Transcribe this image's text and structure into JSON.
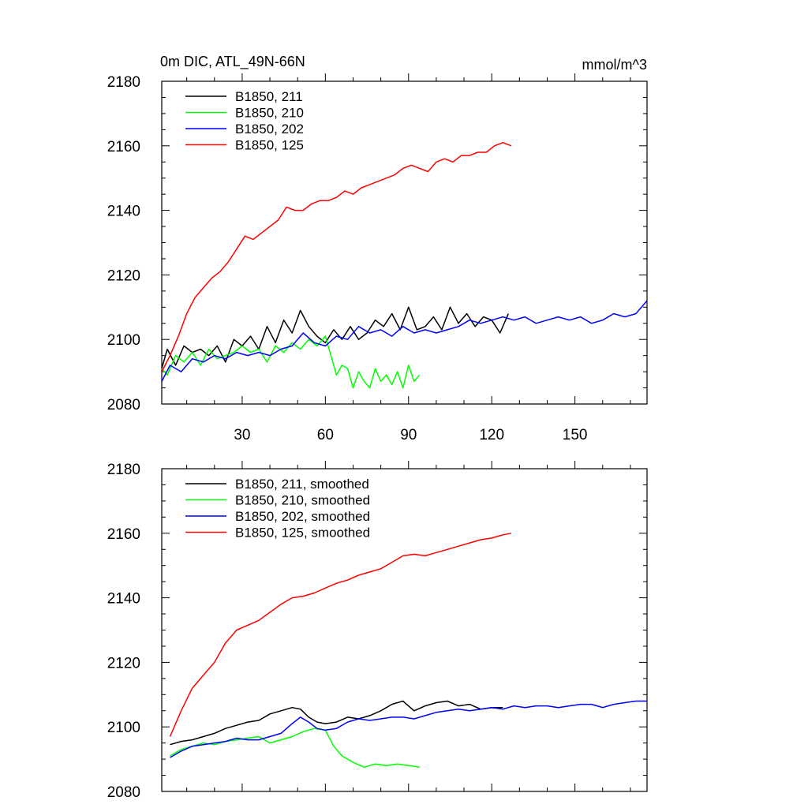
{
  "chart_data": [
    {
      "type": "line",
      "title": "0m DIC, ATL_49N-66N",
      "units": "mmol/m^3",
      "ylim": [
        2080,
        2180
      ],
      "xlim": [
        1,
        176
      ],
      "ytick_labels": [
        2080,
        2100,
        2120,
        2140,
        2160,
        2180
      ],
      "xtick_labels": [
        30,
        60,
        90,
        120,
        150
      ],
      "legend_position": "top-left",
      "series": [
        {
          "name": "B1850, 211",
          "color": "#000000",
          "x": [
            1,
            3,
            6,
            9,
            12,
            15,
            18,
            21,
            24,
            27,
            30,
            33,
            36,
            39,
            42,
            45,
            48,
            51,
            54,
            57,
            60,
            63,
            66,
            69,
            72,
            75,
            78,
            81,
            84,
            87,
            90,
            93,
            96,
            99,
            102,
            105,
            108,
            111,
            114,
            117,
            120,
            123,
            126
          ],
          "values": [
            2091,
            2097,
            2092,
            2098,
            2096,
            2097,
            2095,
            2098,
            2093,
            2100,
            2098,
            2101,
            2097,
            2104,
            2099,
            2106,
            2102,
            2109,
            2104,
            2101,
            2099,
            2103,
            2100,
            2104,
            2100,
            2102,
            2106,
            2104,
            2108,
            2103,
            2110,
            2103,
            2104,
            2107,
            2103,
            2110,
            2105,
            2108,
            2104,
            2107,
            2106,
            2102,
            2108
          ]
        },
        {
          "name": "B1850, 210",
          "color": "#00ff00",
          "x": [
            1,
            3,
            6,
            9,
            12,
            15,
            18,
            21,
            24,
            27,
            30,
            33,
            36,
            39,
            42,
            45,
            48,
            51,
            54,
            57,
            60,
            62,
            64,
            66,
            68,
            70,
            72,
            74,
            76,
            78,
            80,
            82,
            84,
            86,
            88,
            90,
            92,
            94
          ],
          "values": [
            2091,
            2089,
            2095,
            2093,
            2096,
            2092,
            2097,
            2094,
            2095,
            2096,
            2098,
            2096,
            2097,
            2093,
            2098,
            2096,
            2099,
            2097,
            2100,
            2098,
            2101,
            2095,
            2089,
            2092,
            2091,
            2085,
            2090,
            2087,
            2085,
            2091,
            2087,
            2089,
            2086,
            2090,
            2085,
            2092,
            2087,
            2089
          ]
        },
        {
          "name": "B1850, 202",
          "color": "#0000ff",
          "x": [
            1,
            4,
            8,
            12,
            16,
            20,
            24,
            28,
            32,
            36,
            40,
            44,
            48,
            52,
            56,
            60,
            64,
            68,
            72,
            76,
            80,
            84,
            88,
            92,
            96,
            100,
            104,
            108,
            112,
            116,
            120,
            124,
            128,
            132,
            136,
            140,
            144,
            148,
            152,
            156,
            160,
            164,
            168,
            172,
            176
          ],
          "values": [
            2087,
            2092,
            2090,
            2094,
            2093,
            2095,
            2094,
            2096,
            2095,
            2096,
            2095,
            2097,
            2098,
            2102,
            2099,
            2098,
            2101,
            2100,
            2104,
            2102,
            2103,
            2101,
            2104,
            2102,
            2103,
            2102,
            2103,
            2104,
            2106,
            2105,
            2106,
            2107,
            2106,
            2107,
            2105,
            2106,
            2107,
            2106,
            2107,
            2105,
            2106,
            2108,
            2107,
            2108,
            2112
          ]
        },
        {
          "name": "B1850, 125",
          "color": "#ff0000",
          "x": [
            1,
            4,
            7,
            10,
            13,
            16,
            19,
            22,
            25,
            28,
            31,
            34,
            37,
            40,
            43,
            46,
            49,
            52,
            55,
            58,
            61,
            64,
            67,
            70,
            73,
            76,
            79,
            82,
            85,
            88,
            91,
            94,
            97,
            100,
            103,
            106,
            109,
            112,
            115,
            118,
            121,
            124,
            127
          ],
          "values": [
            2090,
            2095,
            2101,
            2108,
            2113,
            2116,
            2119,
            2121,
            2124,
            2128,
            2132,
            2131,
            2133,
            2135,
            2137,
            2141,
            2140,
            2140,
            2142,
            2143,
            2143,
            2144,
            2146,
            2145,
            2147,
            2148,
            2149,
            2150,
            2151,
            2153,
            2154,
            2153,
            2152,
            2155,
            2156,
            2155,
            2157,
            2157,
            2158,
            2158,
            2160,
            2161,
            2160
          ]
        }
      ]
    },
    {
      "type": "line",
      "ylim": [
        2080,
        2180
      ],
      "xlim": [
        1,
        176
      ],
      "ytick_labels": [
        2080,
        2100,
        2120,
        2140,
        2160,
        2180
      ],
      "legend_position": "top-left",
      "series": [
        {
          "name": "B1850, 211, smoothed",
          "color": "#000000",
          "x": [
            4,
            8,
            12,
            16,
            20,
            24,
            28,
            32,
            36,
            40,
            44,
            48,
            51,
            54,
            57,
            60,
            64,
            68,
            72,
            76,
            80,
            84,
            88,
            92,
            96,
            100,
            104,
            108,
            112,
            116,
            120,
            124
          ],
          "values": [
            2094.5,
            2095.5,
            2096,
            2097,
            2098,
            2099.5,
            2100.5,
            2101.5,
            2102,
            2104,
            2105,
            2106,
            2105.5,
            2103,
            2101.5,
            2101,
            2101.5,
            2103,
            2102.5,
            2103.5,
            2105,
            2107,
            2108,
            2105,
            2106.5,
            2107.5,
            2108,
            2106.5,
            2107,
            2105.5,
            2106,
            2106
          ]
        },
        {
          "name": "B1850, 210, smoothed",
          "color": "#00ff00",
          "x": [
            4,
            8,
            12,
            16,
            20,
            24,
            28,
            32,
            36,
            40,
            44,
            48,
            52,
            56,
            60,
            63,
            66,
            70,
            74,
            78,
            82,
            86,
            90,
            94
          ],
          "values": [
            2091,
            2093,
            2094,
            2095,
            2094.5,
            2095.5,
            2096,
            2096.5,
            2097,
            2095,
            2096,
            2097,
            2098.5,
            2099.5,
            2099,
            2094,
            2091,
            2089,
            2087.5,
            2088.5,
            2088,
            2088.5,
            2088,
            2087.5
          ]
        },
        {
          "name": "B1850, 202, smoothed",
          "color": "#0000ff",
          "x": [
            4,
            8,
            12,
            16,
            20,
            24,
            28,
            32,
            36,
            40,
            44,
            48,
            51,
            54,
            57,
            60,
            64,
            68,
            72,
            76,
            80,
            84,
            88,
            92,
            96,
            100,
            104,
            108,
            112,
            116,
            120,
            124,
            128,
            132,
            136,
            140,
            144,
            148,
            152,
            156,
            160,
            164,
            168,
            172,
            176
          ],
          "values": [
            2090.5,
            2092.5,
            2094,
            2094.5,
            2095,
            2095.5,
            2096.5,
            2096,
            2096,
            2097,
            2098,
            2101,
            2103,
            2101.5,
            2099.5,
            2099,
            2099.5,
            2101.5,
            2102.5,
            2102,
            2102.5,
            2103,
            2103,
            2102.5,
            2103.5,
            2104.5,
            2105,
            2105.5,
            2105,
            2105.5,
            2106,
            2105.5,
            2106.5,
            2106,
            2106.5,
            2106.5,
            2106,
            2106.5,
            2107,
            2107,
            2106,
            2107,
            2107.5,
            2108,
            2108
          ]
        },
        {
          "name": "B1850, 125, smoothed",
          "color": "#ff0000",
          "x": [
            4,
            8,
            12,
            16,
            20,
            24,
            28,
            32,
            36,
            40,
            44,
            48,
            52,
            56,
            60,
            64,
            68,
            72,
            76,
            80,
            84,
            88,
            92,
            96,
            100,
            104,
            108,
            112,
            116,
            120,
            124,
            127
          ],
          "values": [
            2097,
            2105,
            2112,
            2116,
            2120,
            2126,
            2130,
            2131.5,
            2133,
            2135.5,
            2138,
            2140,
            2140.5,
            2141.5,
            2143,
            2144.5,
            2145.5,
            2147,
            2148,
            2149,
            2151,
            2153,
            2153.5,
            2153,
            2154,
            2155,
            2156,
            2157,
            2158,
            2158.5,
            2159.5,
            2160
          ]
        }
      ]
    }
  ]
}
